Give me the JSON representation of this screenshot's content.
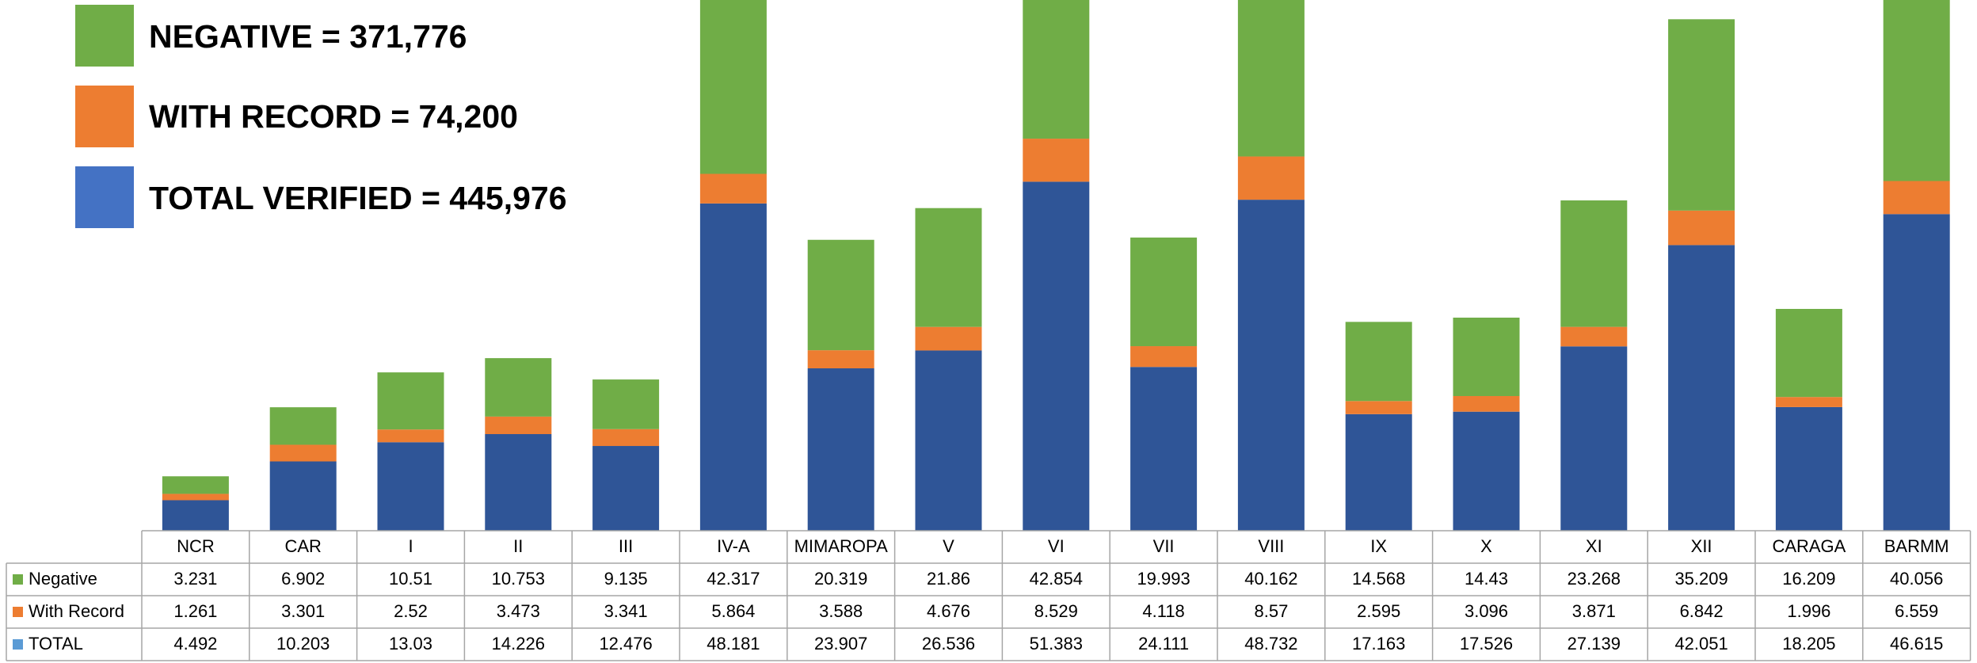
{
  "chart_data": {
    "type": "bar",
    "stacked": true,
    "categories": [
      "NCR",
      "CAR",
      "I",
      "II",
      "III",
      "IV-A",
      "MIMAROPA",
      "V",
      "VI",
      "VII",
      "VIII",
      "IX",
      "X",
      "XI",
      "XII",
      "CARAGA",
      "BARMM"
    ],
    "series": [
      {
        "name": "Negative",
        "color": "#70AD47",
        "values": [
          "3.231",
          "6.902",
          "10.51",
          "10.753",
          "9.135",
          "42.317",
          "20.319",
          "21.86",
          "42.854",
          "19.993",
          "40.162",
          "14.568",
          "14.43",
          "23.268",
          "35.209",
          "16.209",
          "40.056"
        ]
      },
      {
        "name": "With Record",
        "color": "#ED7D31",
        "values": [
          "1.261",
          "3.301",
          "2.52",
          "3.473",
          "3.341",
          "5.864",
          "3.588",
          "4.676",
          "8.529",
          "4.118",
          "8.57",
          "2.595",
          "3.096",
          "3.871",
          "6.842",
          "1.996",
          "6.559"
        ]
      },
      {
        "name": "TOTAL",
        "color": "#2F5597",
        "table_marker_color": "#5B9BD5",
        "values": [
          "4.492",
          "10.203",
          "13.03",
          "14.226",
          "12.476",
          "48.181",
          "23.907",
          "26.536",
          "51.383",
          "24.111",
          "48.732",
          "17.163",
          "17.526",
          "27.139",
          "42.051",
          "18.205",
          "46.615"
        ]
      }
    ],
    "data_table": true,
    "grid": false
  },
  "legend_callouts": [
    {
      "label": "NEGATIVE = 371,776",
      "color": "#70AD47"
    },
    {
      "label": "WITH RECORD = 74,200",
      "color": "#ED7D31"
    },
    {
      "label": "TOTAL VERIFIED = 445,976",
      "color": "#4472C4"
    }
  ]
}
